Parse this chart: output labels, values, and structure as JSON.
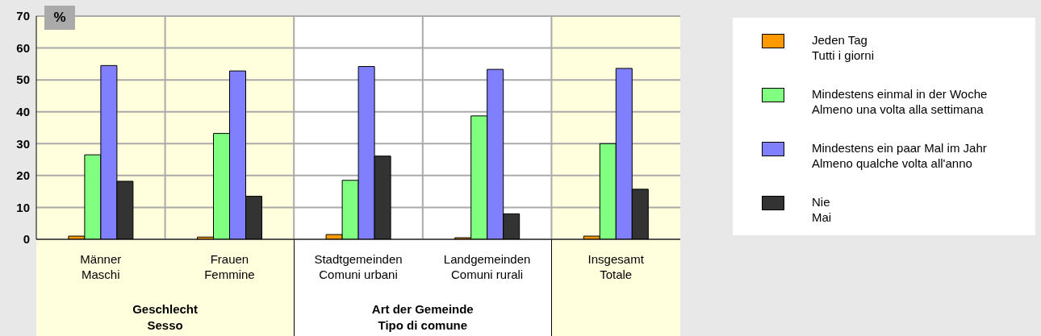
{
  "chart_data": {
    "type": "bar",
    "ylabel": "%",
    "categories": [
      "Männer\nMaschi",
      "Frauen\nFemmine",
      "Stadtgemeinden\nComuni urbani",
      "Landgemeinden\nComuni rurali",
      "Insgesamt\nTotale"
    ],
    "series": [
      {
        "name": "Jeden Tag\nTutti i giorni",
        "color": "#ff9900",
        "values": [
          1.0,
          0.7,
          1.5,
          0.5,
          1.0
        ]
      },
      {
        "name": "Mindestens einmal in der Woche\nAlmeno una volta alla settimana",
        "color": "#80ff80",
        "values": [
          26.5,
          33.2,
          18.5,
          38.7,
          30.0
        ]
      },
      {
        "name": "Mindestens ein paar Mal im Jahr\nAlmeno qualche volta all'anno",
        "color": "#8080ff",
        "values": [
          54.5,
          52.8,
          54.2,
          53.3,
          53.6
        ]
      },
      {
        "name": "Nie\nMai",
        "color": "#333333",
        "values": [
          18.2,
          13.5,
          26.1,
          8.0,
          15.7
        ]
      }
    ],
    "ylim": [
      0,
      70
    ],
    "yticks": [
      0,
      10,
      20,
      30,
      40,
      50,
      60,
      70
    ],
    "grid": true,
    "legend": "right",
    "bands": [
      {
        "axis": "x",
        "from": "Männer\nMaschi",
        "to": "Frauen\nFemmine",
        "color": "#ffffdd"
      },
      {
        "axis": "x",
        "from": "Stadtgemeinden\nComuni urbani",
        "to": "Landgemeinden\nComuni rurali",
        "color": "#ffffff"
      },
      {
        "axis": "x",
        "from": "Insgesamt\nTotale",
        "to": "Insgesamt\nTotale",
        "color": "#ffffdd"
      }
    ],
    "annotations": [
      "Geschlecht\nSesso",
      "Art der Gemeinde\nTipo di comune"
    ]
  }
}
